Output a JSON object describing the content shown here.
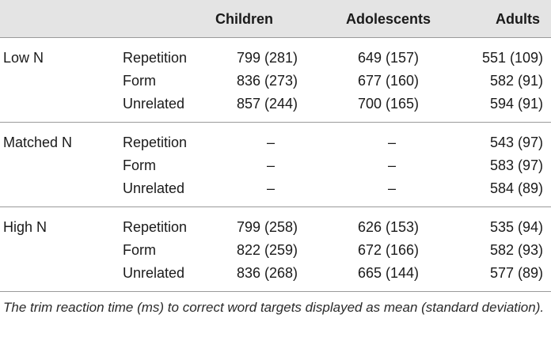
{
  "table": {
    "columns": [
      "",
      "",
      "Children",
      "Adolescents",
      "Adults"
    ],
    "groups": [
      {
        "label": "Low N",
        "rows": [
          {
            "condition": "Repetition",
            "children": "799 (281)",
            "adolescents": "649 (157)",
            "adults": "551 (109)"
          },
          {
            "condition": "Form",
            "children": "836 (273)",
            "adolescents": "677 (160)",
            "adults": "582 (91)"
          },
          {
            "condition": "Unrelated",
            "children": "857 (244)",
            "adolescents": "700 (165)",
            "adults": "594 (91)"
          }
        ]
      },
      {
        "label": "Matched N",
        "rows": [
          {
            "condition": "Repetition",
            "children": "–",
            "adolescents": "–",
            "adults": "543 (97)"
          },
          {
            "condition": "Form",
            "children": "–",
            "adolescents": "–",
            "adults": "583 (97)"
          },
          {
            "condition": "Unrelated",
            "children": "–",
            "adolescents": "–",
            "adults": "584 (89)"
          }
        ]
      },
      {
        "label": "High N",
        "rows": [
          {
            "condition": "Repetition",
            "children": "799 (258)",
            "adolescents": "626 (153)",
            "adults": "535 (94)"
          },
          {
            "condition": "Form",
            "children": "822 (259)",
            "adolescents": "672 (166)",
            "adults": "582 (93)"
          },
          {
            "condition": "Unrelated",
            "children": "836 (268)",
            "adolescents": "665 (144)",
            "adults": "577 (89)"
          }
        ]
      }
    ]
  },
  "caption": "The trim reaction time (ms) to correct word targets displayed as mean (standard deviation).",
  "colors": {
    "header_background": "#e4e4e4",
    "rule": "#9a9a9a",
    "text": "#1a1a1a"
  }
}
